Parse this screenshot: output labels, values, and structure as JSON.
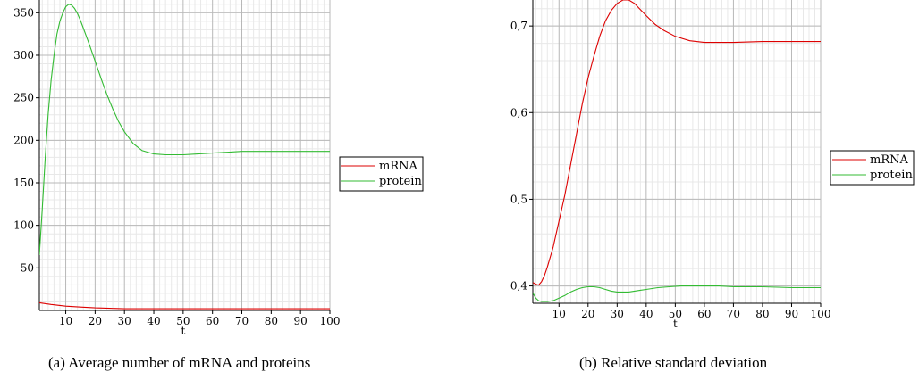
{
  "chart_data": [
    {
      "type": "line",
      "caption": "(a)  Average number of mRNA and proteins",
      "xlabel": "t",
      "ylabel": "",
      "xlim": [
        1,
        100
      ],
      "ylim": [
        0,
        365
      ],
      "xticks": [
        10,
        20,
        30,
        40,
        50,
        60,
        70,
        80,
        90,
        100
      ],
      "yticks": [
        50,
        100,
        150,
        200,
        250,
        300,
        350
      ],
      "grid": true,
      "legend": "right",
      "series": [
        {
          "name": "mRNA",
          "color": "#dd0000",
          "x": [
            1,
            5,
            10,
            15,
            20,
            25,
            30,
            40,
            50,
            60,
            70,
            80,
            90,
            100
          ],
          "y": [
            9,
            7,
            5,
            4,
            3,
            2.5,
            2,
            2,
            2,
            2,
            2,
            2,
            2,
            2
          ]
        },
        {
          "name": "protein",
          "color": "#33bb33",
          "x": [
            1,
            2,
            3,
            4,
            5,
            6,
            7,
            8,
            9,
            10,
            11,
            12,
            13,
            14,
            15,
            16,
            18,
            20,
            22,
            24,
            26,
            28,
            30,
            33,
            36,
            40,
            44,
            48,
            50,
            55,
            60,
            65,
            70,
            80,
            90,
            100
          ],
          "y": [
            65,
            120,
            180,
            230,
            270,
            300,
            325,
            340,
            350,
            357,
            360,
            359,
            355,
            349,
            341,
            332,
            313,
            293,
            273,
            254,
            237,
            222,
            210,
            196,
            188,
            184,
            183,
            183,
            183,
            184,
            185,
            186,
            187,
            187,
            187,
            187
          ]
        }
      ]
    },
    {
      "type": "line",
      "caption": "(b)  Relative standard deviation",
      "xlabel": "t",
      "ylabel": "",
      "xlim": [
        1,
        100
      ],
      "ylim": [
        0.38,
        0.73
      ],
      "xticks": [
        10,
        20,
        30,
        40,
        50,
        60,
        70,
        80,
        90,
        100
      ],
      "yticks": [
        "0,4",
        "0,5",
        "0,6",
        "0,7"
      ],
      "ytick_values": [
        0.4,
        0.5,
        0.6,
        0.7
      ],
      "grid": true,
      "legend": "right",
      "series": [
        {
          "name": "mRNA",
          "color": "#dd0000",
          "x": [
            1,
            2,
            3,
            4,
            5,
            6,
            8,
            10,
            12,
            14,
            16,
            18,
            20,
            22,
            24,
            26,
            28,
            30,
            32,
            34,
            36,
            38,
            40,
            43,
            46,
            50,
            55,
            60,
            65,
            70,
            80,
            90,
            100
          ],
          "y": [
            0.404,
            0.402,
            0.401,
            0.405,
            0.412,
            0.422,
            0.445,
            0.475,
            0.505,
            0.54,
            0.575,
            0.61,
            0.64,
            0.665,
            0.688,
            0.706,
            0.718,
            0.726,
            0.73,
            0.73,
            0.726,
            0.719,
            0.712,
            0.702,
            0.695,
            0.688,
            0.683,
            0.681,
            0.681,
            0.681,
            0.682,
            0.682,
            0.682
          ]
        },
        {
          "name": "protein",
          "color": "#33bb33",
          "x": [
            1,
            2,
            3,
            4,
            5,
            6,
            8,
            10,
            12,
            14,
            16,
            18,
            20,
            22,
            24,
            26,
            28,
            30,
            32,
            34,
            36,
            38,
            40,
            44,
            48,
            52,
            56,
            60,
            65,
            70,
            80,
            90,
            100
          ],
          "y": [
            0.392,
            0.386,
            0.383,
            0.382,
            0.382,
            0.382,
            0.383,
            0.386,
            0.389,
            0.393,
            0.396,
            0.398,
            0.399,
            0.399,
            0.398,
            0.396,
            0.394,
            0.393,
            0.393,
            0.393,
            0.394,
            0.395,
            0.396,
            0.398,
            0.399,
            0.4,
            0.4,
            0.4,
            0.4,
            0.399,
            0.399,
            0.398,
            0.398
          ]
        }
      ]
    }
  ]
}
